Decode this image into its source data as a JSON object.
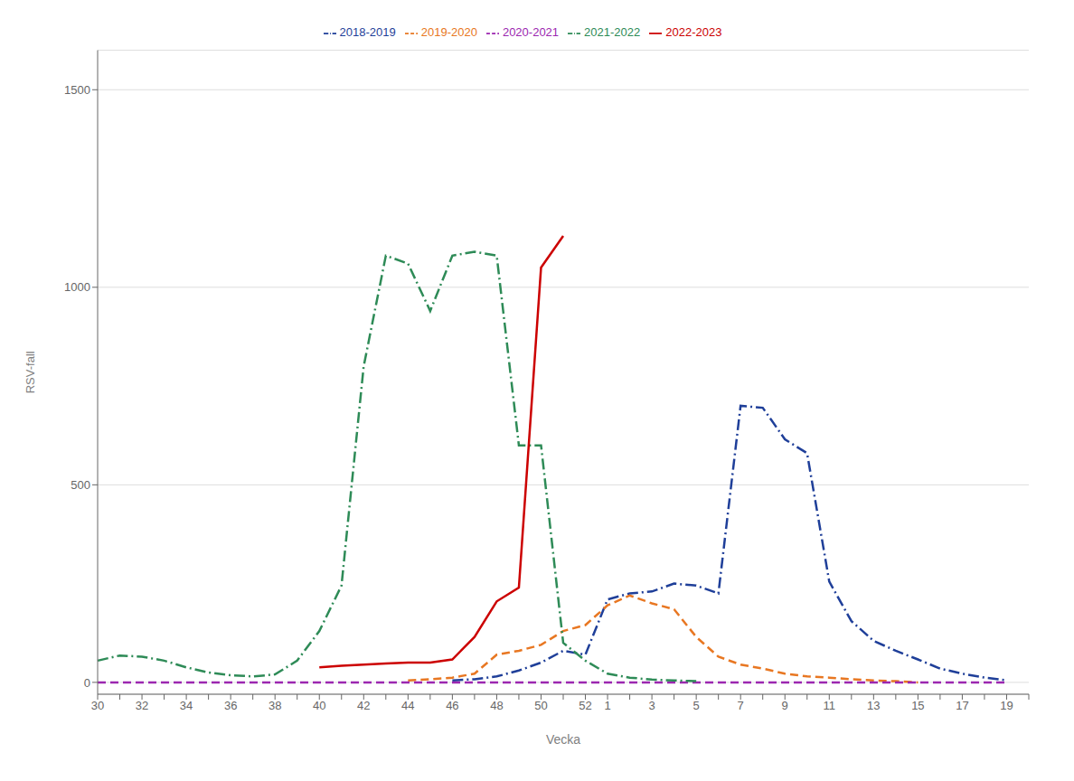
{
  "chart_data": {
    "type": "line",
    "x_label": "Vecka",
    "y_label": "RSV-fall",
    "categories": [
      "30",
      null,
      "32",
      null,
      "34",
      null,
      "36",
      null,
      "38",
      null,
      "40",
      null,
      "42",
      null,
      "44",
      null,
      "46",
      null,
      "48",
      null,
      "50",
      null,
      "52",
      "1",
      null,
      "3",
      null,
      "5",
      null,
      "7",
      null,
      "9",
      null,
      "11",
      null,
      "13",
      null,
      "15",
      null,
      "17",
      null,
      "19",
      null
    ],
    "ylim": [
      -30,
      1600
    ],
    "yticks": [
      0,
      500,
      1000,
      1500
    ],
    "grid": true,
    "legend": "top",
    "series": [
      {
        "name": "2018-2019",
        "color": "#1f3f99",
        "line_style": "dashdot",
        "values": [
          null,
          null,
          null,
          null,
          null,
          null,
          null,
          null,
          null,
          null,
          null,
          null,
          null,
          null,
          null,
          null,
          5,
          8,
          15,
          30,
          50,
          80,
          70,
          210,
          225,
          230,
          250,
          245,
          225,
          700,
          695,
          615,
          580,
          255,
          155,
          105,
          80,
          58,
          35,
          22,
          12,
          5,
          null
        ]
      },
      {
        "name": "2019-2020",
        "color": "#e87722",
        "line_style": "dashed",
        "values": [
          null,
          null,
          null,
          null,
          null,
          null,
          null,
          null,
          null,
          null,
          null,
          null,
          null,
          null,
          5,
          8,
          12,
          22,
          70,
          80,
          95,
          130,
          145,
          195,
          220,
          200,
          185,
          115,
          65,
          45,
          35,
          22,
          15,
          12,
          8,
          5,
          3,
          0,
          null,
          null,
          null,
          null,
          null
        ]
      },
      {
        "name": "2020-2021",
        "color": "#9c27b0",
        "line_style": "dashed",
        "values": [
          0,
          0,
          0,
          0,
          0,
          0,
          0,
          0,
          0,
          0,
          0,
          0,
          0,
          0,
          0,
          0,
          0,
          0,
          0,
          0,
          0,
          0,
          0,
          0,
          0,
          0,
          0,
          0,
          0,
          0,
          0,
          0,
          0,
          0,
          0,
          0,
          0,
          0,
          0,
          0,
          0,
          0,
          null
        ]
      },
      {
        "name": "2021-2022",
        "color": "#2e8b57",
        "line_style": "dashdot",
        "values": [
          55,
          68,
          65,
          55,
          38,
          25,
          18,
          15,
          20,
          55,
          130,
          245,
          800,
          1080,
          1060,
          940,
          1080,
          1090,
          1080,
          600,
          600,
          100,
          55,
          22,
          12,
          7,
          5,
          3,
          null,
          null,
          null,
          null,
          null,
          null,
          null,
          null,
          null,
          null,
          null,
          null,
          null,
          null,
          null
        ]
      },
      {
        "name": "2022-2023",
        "color": "#cc0000",
        "line_style": "solid",
        "values": [
          null,
          null,
          null,
          null,
          null,
          null,
          null,
          null,
          null,
          null,
          38,
          42,
          45,
          48,
          50,
          50,
          58,
          115,
          205,
          240,
          1050,
          1130,
          null,
          null,
          null,
          null,
          null,
          null,
          null,
          null,
          null,
          null,
          null,
          null,
          null,
          null,
          null,
          null,
          null,
          null,
          null,
          null,
          null
        ]
      }
    ]
  }
}
